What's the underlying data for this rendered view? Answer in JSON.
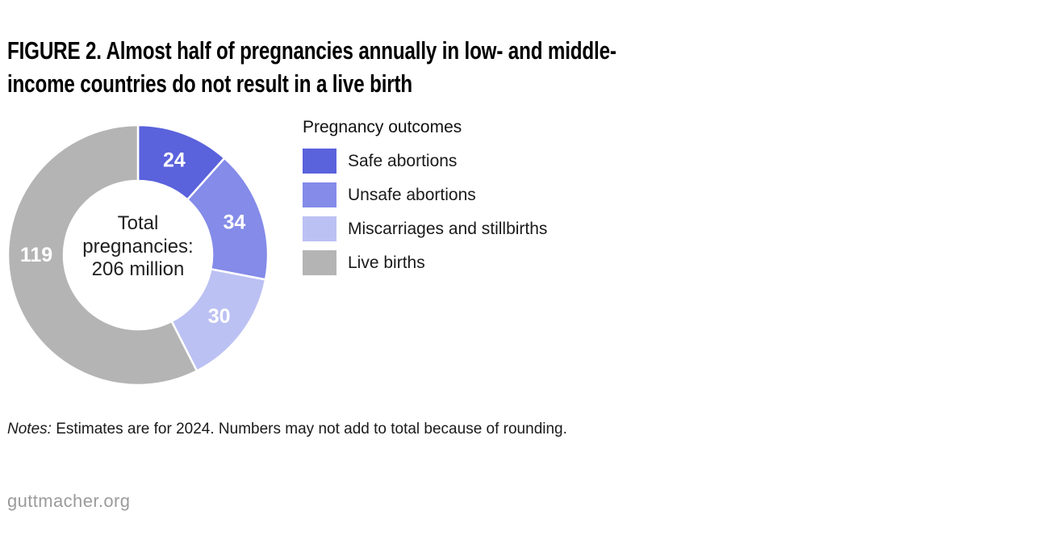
{
  "figure": {
    "title_lines": [
      "FIGURE 2. Almost half of pregnancies annually in low- and middle-",
      "income countries do not result in a live birth"
    ]
  },
  "legend": {
    "title": "Pregnancy outcomes"
  },
  "notes": {
    "prefix": "Notes:",
    "text": "Estimates are for 2024. Numbers may not add to total because of rounding."
  },
  "footer": {
    "site": "guttmacher.org"
  },
  "chart_data": {
    "type": "pie",
    "subtype": "donut",
    "title": "Pregnancy outcomes",
    "center_label": "Total\npregnancies:\n206 million",
    "total": {
      "label": "Total pregnancies",
      "value": "206 million"
    },
    "start_angle_deg": 0,
    "direction": "clockwise",
    "legend_position": "right",
    "segments": [
      {
        "label": "Safe abortions",
        "value": 24,
        "color": "#5a62dc",
        "label_angle_deg": 20.9
      },
      {
        "label": "Unsafe abortions",
        "value": 34,
        "color": "#848be8",
        "label_angle_deg": 71.3
      },
      {
        "label": "Miscarriages and stillbirths",
        "value": 30,
        "color": "#bcc1f3",
        "label_angle_deg": 127
      },
      {
        "label": "Live births",
        "value": 119,
        "color": "#b4b4b4",
        "label_angle_deg": 270
      }
    ]
  }
}
